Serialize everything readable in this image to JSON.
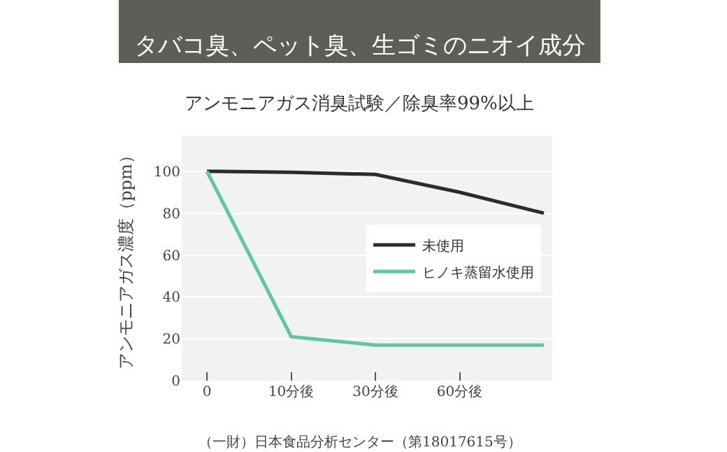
{
  "chart_data": {
    "type": "line",
    "title": "タバコ臭、ペット臭、生ゴミのニオイ成分",
    "subtitle": "アンモニアガス消臭試験／除臭率99%以上",
    "ylabel": "アンモニアガス濃度（ppm）",
    "categories": [
      "0",
      "10分後",
      "30分後",
      "60分後",
      null
    ],
    "series": [
      {
        "name": "未使用",
        "color": "#2b2b2b",
        "values": [
          100,
          99.5,
          98.5,
          90,
          80
        ]
      },
      {
        "name": "ヒノキ蒸留水使用",
        "color": "#5cc6a6",
        "values": [
          100,
          21,
          17,
          17,
          17
        ]
      }
    ],
    "ylim": [
      0,
      117
    ],
    "yticks": [
      0,
      20,
      40,
      60,
      80,
      100
    ],
    "grid": "y",
    "legend": "right",
    "marker": "none",
    "line_style": "solid",
    "annotations": [
      "（一財）日本食品分析センター（第18017615号）"
    ]
  }
}
